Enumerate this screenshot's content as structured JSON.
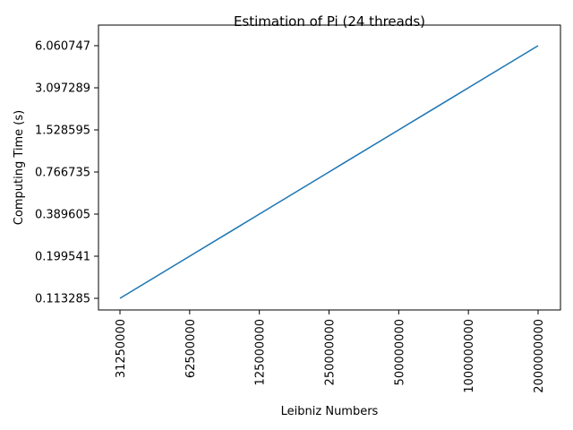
{
  "chart_data": {
    "type": "line",
    "title": "Estimation of Pi (24 threads)",
    "xlabel": "Leibniz Numbers",
    "ylabel": "Computing Time (s)",
    "categories": [
      "31250000",
      "62500000",
      "125000000",
      "250000000",
      "500000000",
      "1000000000",
      "2000000000"
    ],
    "y_tick_labels": [
      "0.113285",
      "0.199541",
      "0.389605",
      "0.766735",
      "1.528595",
      "3.097289",
      "6.060747"
    ],
    "series": [
      {
        "values": [
          0.113285,
          0.199541,
          0.389605,
          0.766735,
          1.528595,
          3.097289,
          6.060747
        ],
        "color": "#1f77b4"
      }
    ],
    "grid": false,
    "legend": "none"
  }
}
